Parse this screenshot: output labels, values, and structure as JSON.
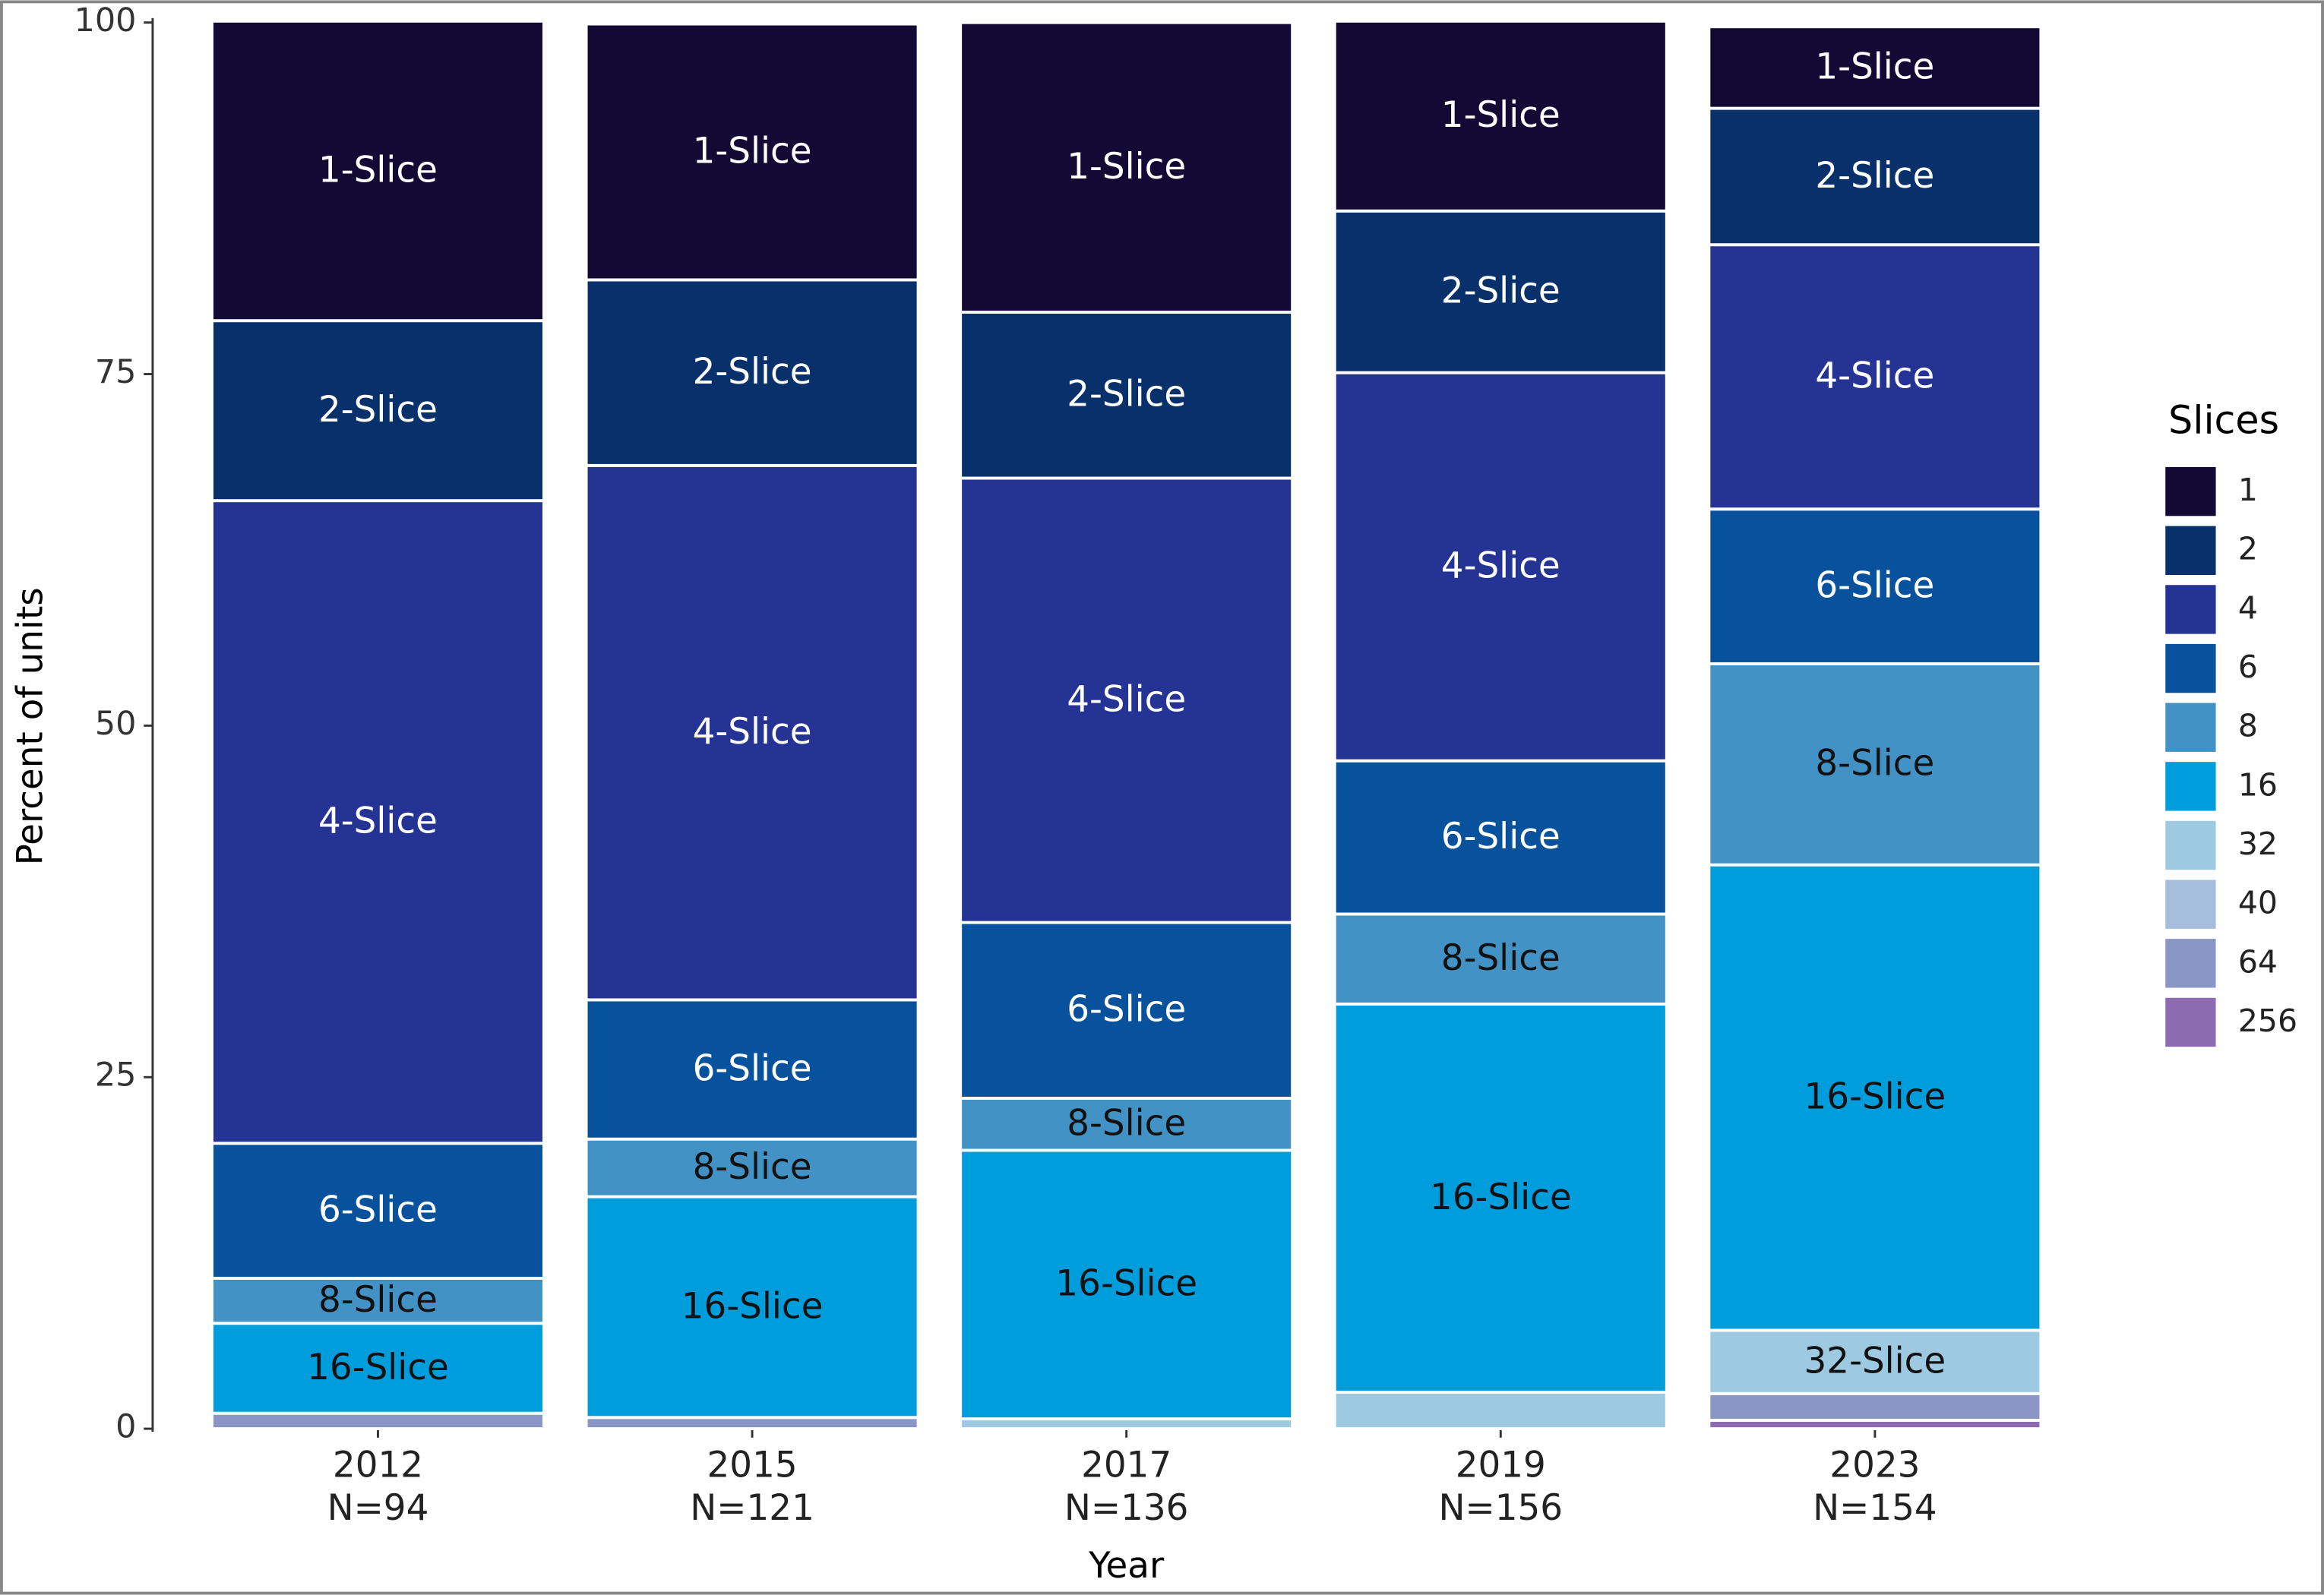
{
  "chart_data": {
    "type": "stacked_bar",
    "y_label": "Percent of units",
    "x_label": "Year",
    "legend_title": "Slices",
    "categories": [
      "2012",
      "2015",
      "2017",
      "2019",
      "2023"
    ],
    "category_sublabels": [
      "N=94",
      "N=121",
      "N=136",
      "N=156",
      "N=154"
    ],
    "ylim": [
      0,
      100
    ],
    "yticks": [
      0,
      25,
      50,
      75,
      100
    ],
    "grid": false,
    "series": [
      {
        "name": "1",
        "label": "1-Slice",
        "color": "#120a35",
        "values": [
          21.3,
          18.2,
          20.6,
          13.5,
          5.8
        ]
      },
      {
        "name": "2",
        "label": "2-Slice",
        "color": "#08306b",
        "values": [
          12.8,
          13.2,
          11.8,
          11.5,
          9.7
        ]
      },
      {
        "name": "4",
        "label": "4-Slice",
        "color": "#253494",
        "values": [
          45.7,
          38.0,
          31.6,
          27.6,
          18.8
        ]
      },
      {
        "name": "6",
        "label": "6-Slice",
        "color": "#08519c",
        "values": [
          9.6,
          9.9,
          12.5,
          10.9,
          11.0
        ]
      },
      {
        "name": "8",
        "label": "8-Slice",
        "color": "#4292c6",
        "values": [
          3.2,
          4.1,
          3.7,
          6.4,
          14.3
        ]
      },
      {
        "name": "16",
        "label": "16-Slice",
        "color": "#009ddc",
        "values": [
          6.4,
          15.7,
          19.1,
          27.6,
          33.1
        ]
      },
      {
        "name": "32",
        "label": "32-Slice",
        "color": "#9ecae1",
        "values": [
          0,
          0,
          0.7,
          2.6,
          4.5
        ]
      },
      {
        "name": "40",
        "label": "40-Slice",
        "color": "#a6bddb",
        "values": [
          0,
          0,
          0,
          0,
          0
        ]
      },
      {
        "name": "64",
        "label": "64-Slice",
        "color": "#8c96c6",
        "values": [
          1.1,
          0.8,
          0,
          0,
          1.9
        ]
      },
      {
        "name": "256",
        "label": "256-Slice",
        "color": "#8c6bb1",
        "values": [
          0,
          0,
          0,
          0,
          0.6
        ]
      }
    ]
  }
}
